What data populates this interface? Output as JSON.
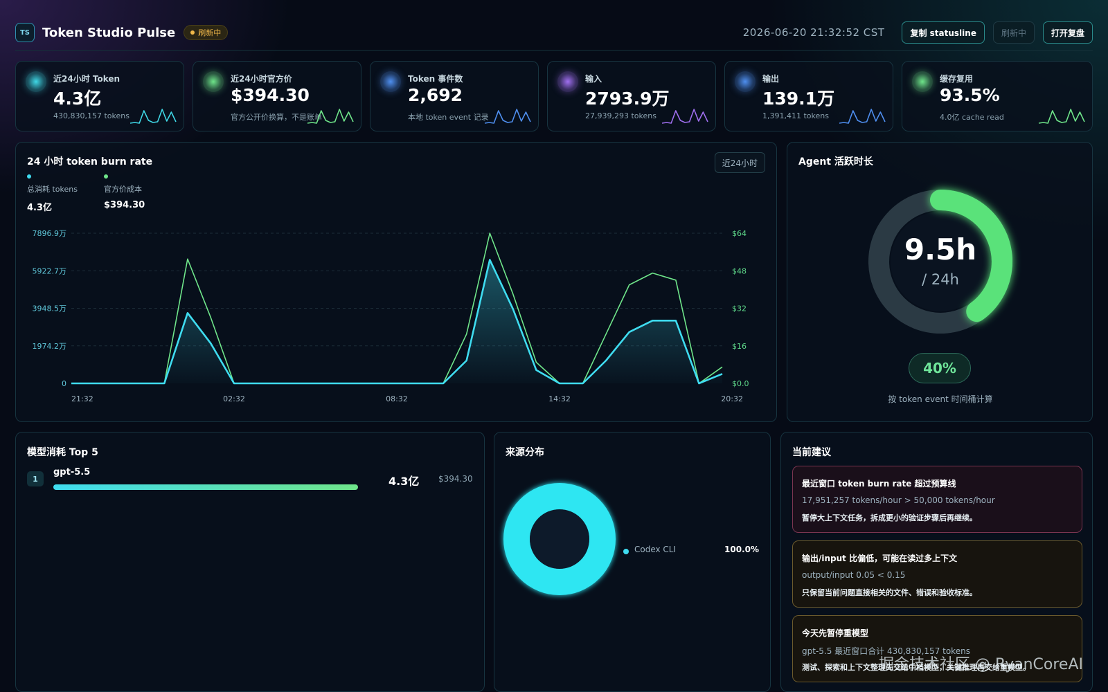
{
  "header": {
    "logo_text": "TS",
    "title": "Token Studio Pulse",
    "status": "刷新中",
    "datetime": "2026-06-20 21:32:52 CST",
    "buttons": [
      "复制 statusline",
      "刷新中",
      "打开复盘"
    ]
  },
  "stats": [
    {
      "label": "近24小时 Token",
      "value": "4.3亿",
      "sub": "430,830,157 tokens",
      "color": "#3fd8e6"
    },
    {
      "label": "近24小时官方价",
      "value": "$394.30",
      "sub": "官方公开价换算，不是账单",
      "color": "#6fe58a"
    },
    {
      "label": "Token 事件数",
      "value": "2,692",
      "sub": "本地 token event 记录",
      "color": "#4f8ff0"
    },
    {
      "label": "输入",
      "value": "2793.9万",
      "sub": "27,939,293 tokens",
      "color": "#a06ff0"
    },
    {
      "label": "输出",
      "value": "139.1万",
      "sub": "1,391,411 tokens",
      "color": "#4f8ff0"
    },
    {
      "label": "缓存复用",
      "value": "93.5%",
      "sub": "4.0亿 cache read",
      "color": "#6fe58a"
    }
  ],
  "burn": {
    "title": "24 小时 token burn rate",
    "range_button": "近24小时",
    "legend": [
      {
        "name": "总消耗 tokens",
        "value": "4.3亿",
        "color": "#3fdcf0"
      },
      {
        "name": "官方价成本",
        "value": "$394.30",
        "color": "#6fe58a"
      }
    ]
  },
  "chart_data": {
    "type": "line",
    "x_labels": [
      "21:32",
      "02:32",
      "08:32",
      "14:32",
      "20:32"
    ],
    "y_left_ticks": [
      "0",
      "1974.2万",
      "3948.5万",
      "5922.7万",
      "7896.9万"
    ],
    "y_right_ticks": [
      "$0.0",
      "$16",
      "$32",
      "$48",
      "$64"
    ],
    "y_left_max_wan": 7896.9,
    "y_right_max": 64,
    "series": [
      {
        "name": "总消耗 tokens",
        "color": "#3fdcf0",
        "values": [
          0,
          0,
          0,
          0,
          0,
          3700,
          2100,
          0,
          0,
          0,
          0,
          0,
          0,
          0,
          0,
          0,
          0,
          1200,
          6500,
          3900,
          700,
          0,
          0,
          1200,
          2700,
          3300,
          3300,
          0,
          500
        ]
      },
      {
        "name": "官方价成本",
        "color": "#6fe58a",
        "values": [
          0,
          0,
          0,
          0,
          0,
          53,
          28,
          0,
          0,
          0,
          0,
          0,
          0,
          0,
          0,
          0,
          0,
          21,
          64,
          38,
          9,
          0,
          0,
          21,
          42,
          47,
          44,
          0,
          7
        ]
      }
    ]
  },
  "agent": {
    "title": "Agent 活跃时长",
    "value": "9.5h",
    "sub": "/ 24h",
    "percent": "40%",
    "progress_fraction": 0.4,
    "note": "按 token event 时间桶计算"
  },
  "models": {
    "title": "模型消耗 Top 5",
    "items": [
      {
        "rank": "1",
        "name": "gpt-5.5",
        "tokens": "4.3亿",
        "cost": "$394.30",
        "share": 1.0
      }
    ]
  },
  "sources": {
    "title": "来源分布",
    "items": [
      {
        "name": "Codex CLI",
        "percent": "100.0%",
        "fraction": 1.0,
        "color": "#3fdcf0"
      }
    ]
  },
  "advice": {
    "title": "当前建议",
    "items": [
      {
        "title": "最近窗口 token burn rate 超过预算线",
        "metric": "17,951,257 tokens/hour > 50,000 tokens/hour",
        "action": "暂停大上下文任务，拆成更小的验证步骤后再继续。",
        "border": "#7a3550",
        "bg": "#1a0f1a"
      },
      {
        "title": "输出/input 比偏低，可能在读过多上下文",
        "metric": "output/input 0.05 < 0.15",
        "action": "只保留当前问题直接相关的文件、错误和验收标准。",
        "border": "#6b5a2c",
        "bg": "#17140e"
      },
      {
        "title": "今天先暂停重模型",
        "metric": "gpt-5.5 最近窗口合计 430,830,157 tokens",
        "action": "测试、探索和上下文整理先交给中档模型，关键推理再交给重模型。",
        "border": "#6b5a2c",
        "bg": "#17140e"
      }
    ]
  },
  "watermark": "掘金技术社区 @ RyanCoreAI"
}
